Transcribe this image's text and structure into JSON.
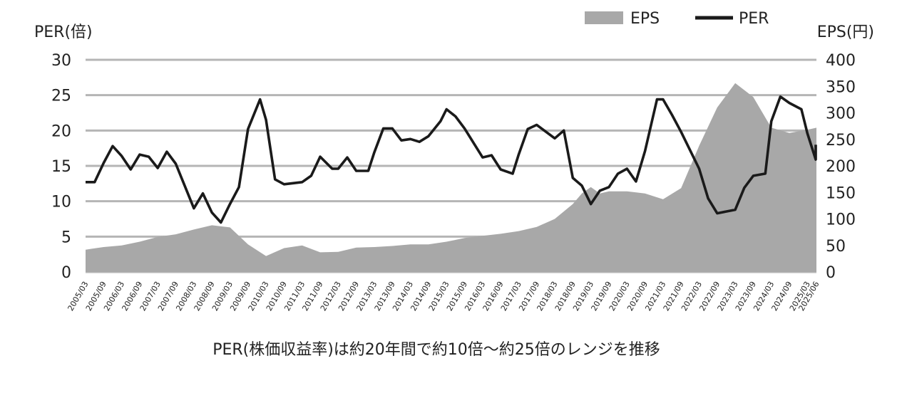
{
  "chart_data": {
    "type": "line+area",
    "legend": {
      "eps_label": "EPS",
      "per_label": "PER",
      "placement": "top-right"
    },
    "left_axis": {
      "title": "PER(倍)",
      "ylim": [
        0,
        30
      ],
      "ticks": [
        "30",
        "25",
        "20",
        "15",
        "10",
        "5",
        "0"
      ]
    },
    "right_axis": {
      "title": "EPS(円)",
      "ylim": [
        0,
        400
      ],
      "ticks": [
        "400",
        "350",
        "300",
        "250",
        "200",
        "150",
        "100",
        "50",
        "0"
      ]
    },
    "grid": true,
    "caption": "PER(株価収益率)は約20年間で約10倍〜約25倍のレンジを推移",
    "categories": [
      "2005/03",
      "2005/09",
      "2006/03",
      "2006/09",
      "2007/03",
      "2007/09",
      "2008/03",
      "2008/09",
      "2009/03",
      "2009/09",
      "2010/03",
      "2010/09",
      "2011/03",
      "2011/09",
      "2012/03",
      "2012/09",
      "2013/03",
      "2013/09",
      "2014/03",
      "2014/09",
      "2015/03",
      "2015/09",
      "2016/03",
      "2016/09",
      "2017/03",
      "2017/09",
      "2018/03",
      "2018/09",
      "2019/03",
      "2019/09",
      "2020/03",
      "2020/09",
      "2021/03",
      "2021/09",
      "2022/03",
      "2022/09",
      "2023/03",
      "2023/09",
      "2024/03",
      "2024/09",
      "2025/03",
      "2025/06"
    ],
    "series": [
      {
        "name": "EPS",
        "type": "area",
        "axis": "right",
        "color": "#a8a8a8",
        "points": [
          [
            "2005/03",
            42
          ],
          [
            "2005/09",
            47
          ],
          [
            "2006/03",
            50
          ],
          [
            "2006/09",
            57
          ],
          [
            "2007/03",
            66
          ],
          [
            "2007/09",
            71
          ],
          [
            "2008/03",
            80
          ],
          [
            "2008/09",
            88
          ],
          [
            "2009/03",
            84
          ],
          [
            "2009/09",
            52
          ],
          [
            "2010/03",
            30
          ],
          [
            "2010/09",
            45
          ],
          [
            "2011/03",
            50
          ],
          [
            "2011/09",
            37
          ],
          [
            "2012/03",
            38
          ],
          [
            "2012/09",
            46
          ],
          [
            "2013/03",
            47
          ],
          [
            "2013/09",
            49
          ],
          [
            "2014/03",
            52
          ],
          [
            "2014/09",
            52
          ],
          [
            "2015/03",
            57
          ],
          [
            "2015/09",
            64
          ],
          [
            "2016/03",
            68
          ],
          [
            "2016/09",
            72
          ],
          [
            "2017/03",
            77
          ],
          [
            "2017/09",
            85
          ],
          [
            "2018/03",
            100
          ],
          [
            "2018/09",
            128
          ],
          [
            "2018/12",
            148
          ],
          [
            "2019/03",
            160
          ],
          [
            "2019/06",
            148
          ],
          [
            "2019/09",
            152
          ],
          [
            "2020/03",
            152
          ],
          [
            "2020/09",
            148
          ],
          [
            "2021/03",
            137
          ],
          [
            "2021/09",
            158
          ],
          [
            "2022/03",
            238
          ],
          [
            "2022/09",
            310
          ],
          [
            "2023/03",
            356
          ],
          [
            "2023/09",
            330
          ],
          [
            "2024/03",
            272
          ],
          [
            "2024/09",
            262
          ],
          [
            "2025/03",
            268
          ],
          [
            "2025/06",
            272
          ]
        ]
      },
      {
        "name": "PER",
        "type": "line",
        "axis": "left",
        "color": "#1a1a1a",
        "points": [
          [
            "2005/03",
            12.7
          ],
          [
            "2005/06",
            12.7
          ],
          [
            "2005/09",
            15.4
          ],
          [
            "2005/12",
            17.8
          ],
          [
            "2006/03",
            16.4
          ],
          [
            "2006/06",
            14.5
          ],
          [
            "2006/09",
            16.6
          ],
          [
            "2006/12",
            16.3
          ],
          [
            "2007/03",
            14.7
          ],
          [
            "2007/06",
            17.0
          ],
          [
            "2007/09",
            15.3
          ],
          [
            "2008/03",
            9.0
          ],
          [
            "2008/06",
            11.1
          ],
          [
            "2008/09",
            8.4
          ],
          [
            "2008/12",
            7.0
          ],
          [
            "2009/03",
            9.6
          ],
          [
            "2009/06",
            12.0
          ],
          [
            "2009/09",
            20.2
          ],
          [
            "2010/01",
            24.4
          ],
          [
            "2010/03",
            21.5
          ],
          [
            "2010/06",
            13.1
          ],
          [
            "2010/09",
            12.4
          ],
          [
            "2011/03",
            12.7
          ],
          [
            "2011/06",
            13.6
          ],
          [
            "2011/09",
            16.3
          ],
          [
            "2012/01",
            14.6
          ],
          [
            "2012/03",
            14.6
          ],
          [
            "2012/06",
            16.2
          ],
          [
            "2012/09",
            14.3
          ],
          [
            "2013/01",
            14.3
          ],
          [
            "2013/03",
            16.9
          ],
          [
            "2013/06",
            20.3
          ],
          [
            "2013/09",
            20.3
          ],
          [
            "2013/12",
            18.6
          ],
          [
            "2014/03",
            18.8
          ],
          [
            "2014/06",
            18.4
          ],
          [
            "2014/09",
            19.2
          ],
          [
            "2015/01",
            21.3
          ],
          [
            "2015/03",
            23.0
          ],
          [
            "2015/06",
            22.0
          ],
          [
            "2015/09",
            20.3
          ],
          [
            "2016/03",
            16.2
          ],
          [
            "2016/06",
            16.5
          ],
          [
            "2016/09",
            14.5
          ],
          [
            "2017/01",
            13.9
          ],
          [
            "2017/03",
            16.6
          ],
          [
            "2017/06",
            20.2
          ],
          [
            "2017/09",
            20.8
          ],
          [
            "2018/03",
            18.9
          ],
          [
            "2018/06",
            20.0
          ],
          [
            "2018/09",
            13.3
          ],
          [
            "2018/12",
            12.2
          ],
          [
            "2019/03",
            9.6
          ],
          [
            "2019/06",
            11.5
          ],
          [
            "2019/09",
            12.0
          ],
          [
            "2019/12",
            13.9
          ],
          [
            "2020/03",
            14.6
          ],
          [
            "2020/06",
            12.8
          ],
          [
            "2020/09",
            17.1
          ],
          [
            "2021/01",
            24.4
          ],
          [
            "2021/03",
            24.4
          ],
          [
            "2021/06",
            22.2
          ],
          [
            "2021/09",
            19.8
          ],
          [
            "2022/03",
            14.6
          ],
          [
            "2022/06",
            10.4
          ],
          [
            "2022/09",
            8.3
          ],
          [
            "2023/03",
            8.8
          ],
          [
            "2023/06",
            11.9
          ],
          [
            "2023/09",
            13.6
          ],
          [
            "2024/01",
            13.9
          ],
          [
            "2024/03",
            21.3
          ],
          [
            "2024/06",
            24.8
          ],
          [
            "2024/09",
            23.9
          ],
          [
            "2025/01",
            23.0
          ],
          [
            "2025/03",
            19.6
          ],
          [
            "2025/06",
            15.9
          ],
          [
            "2025/09",
            18.0
          ]
        ]
      }
    ]
  }
}
